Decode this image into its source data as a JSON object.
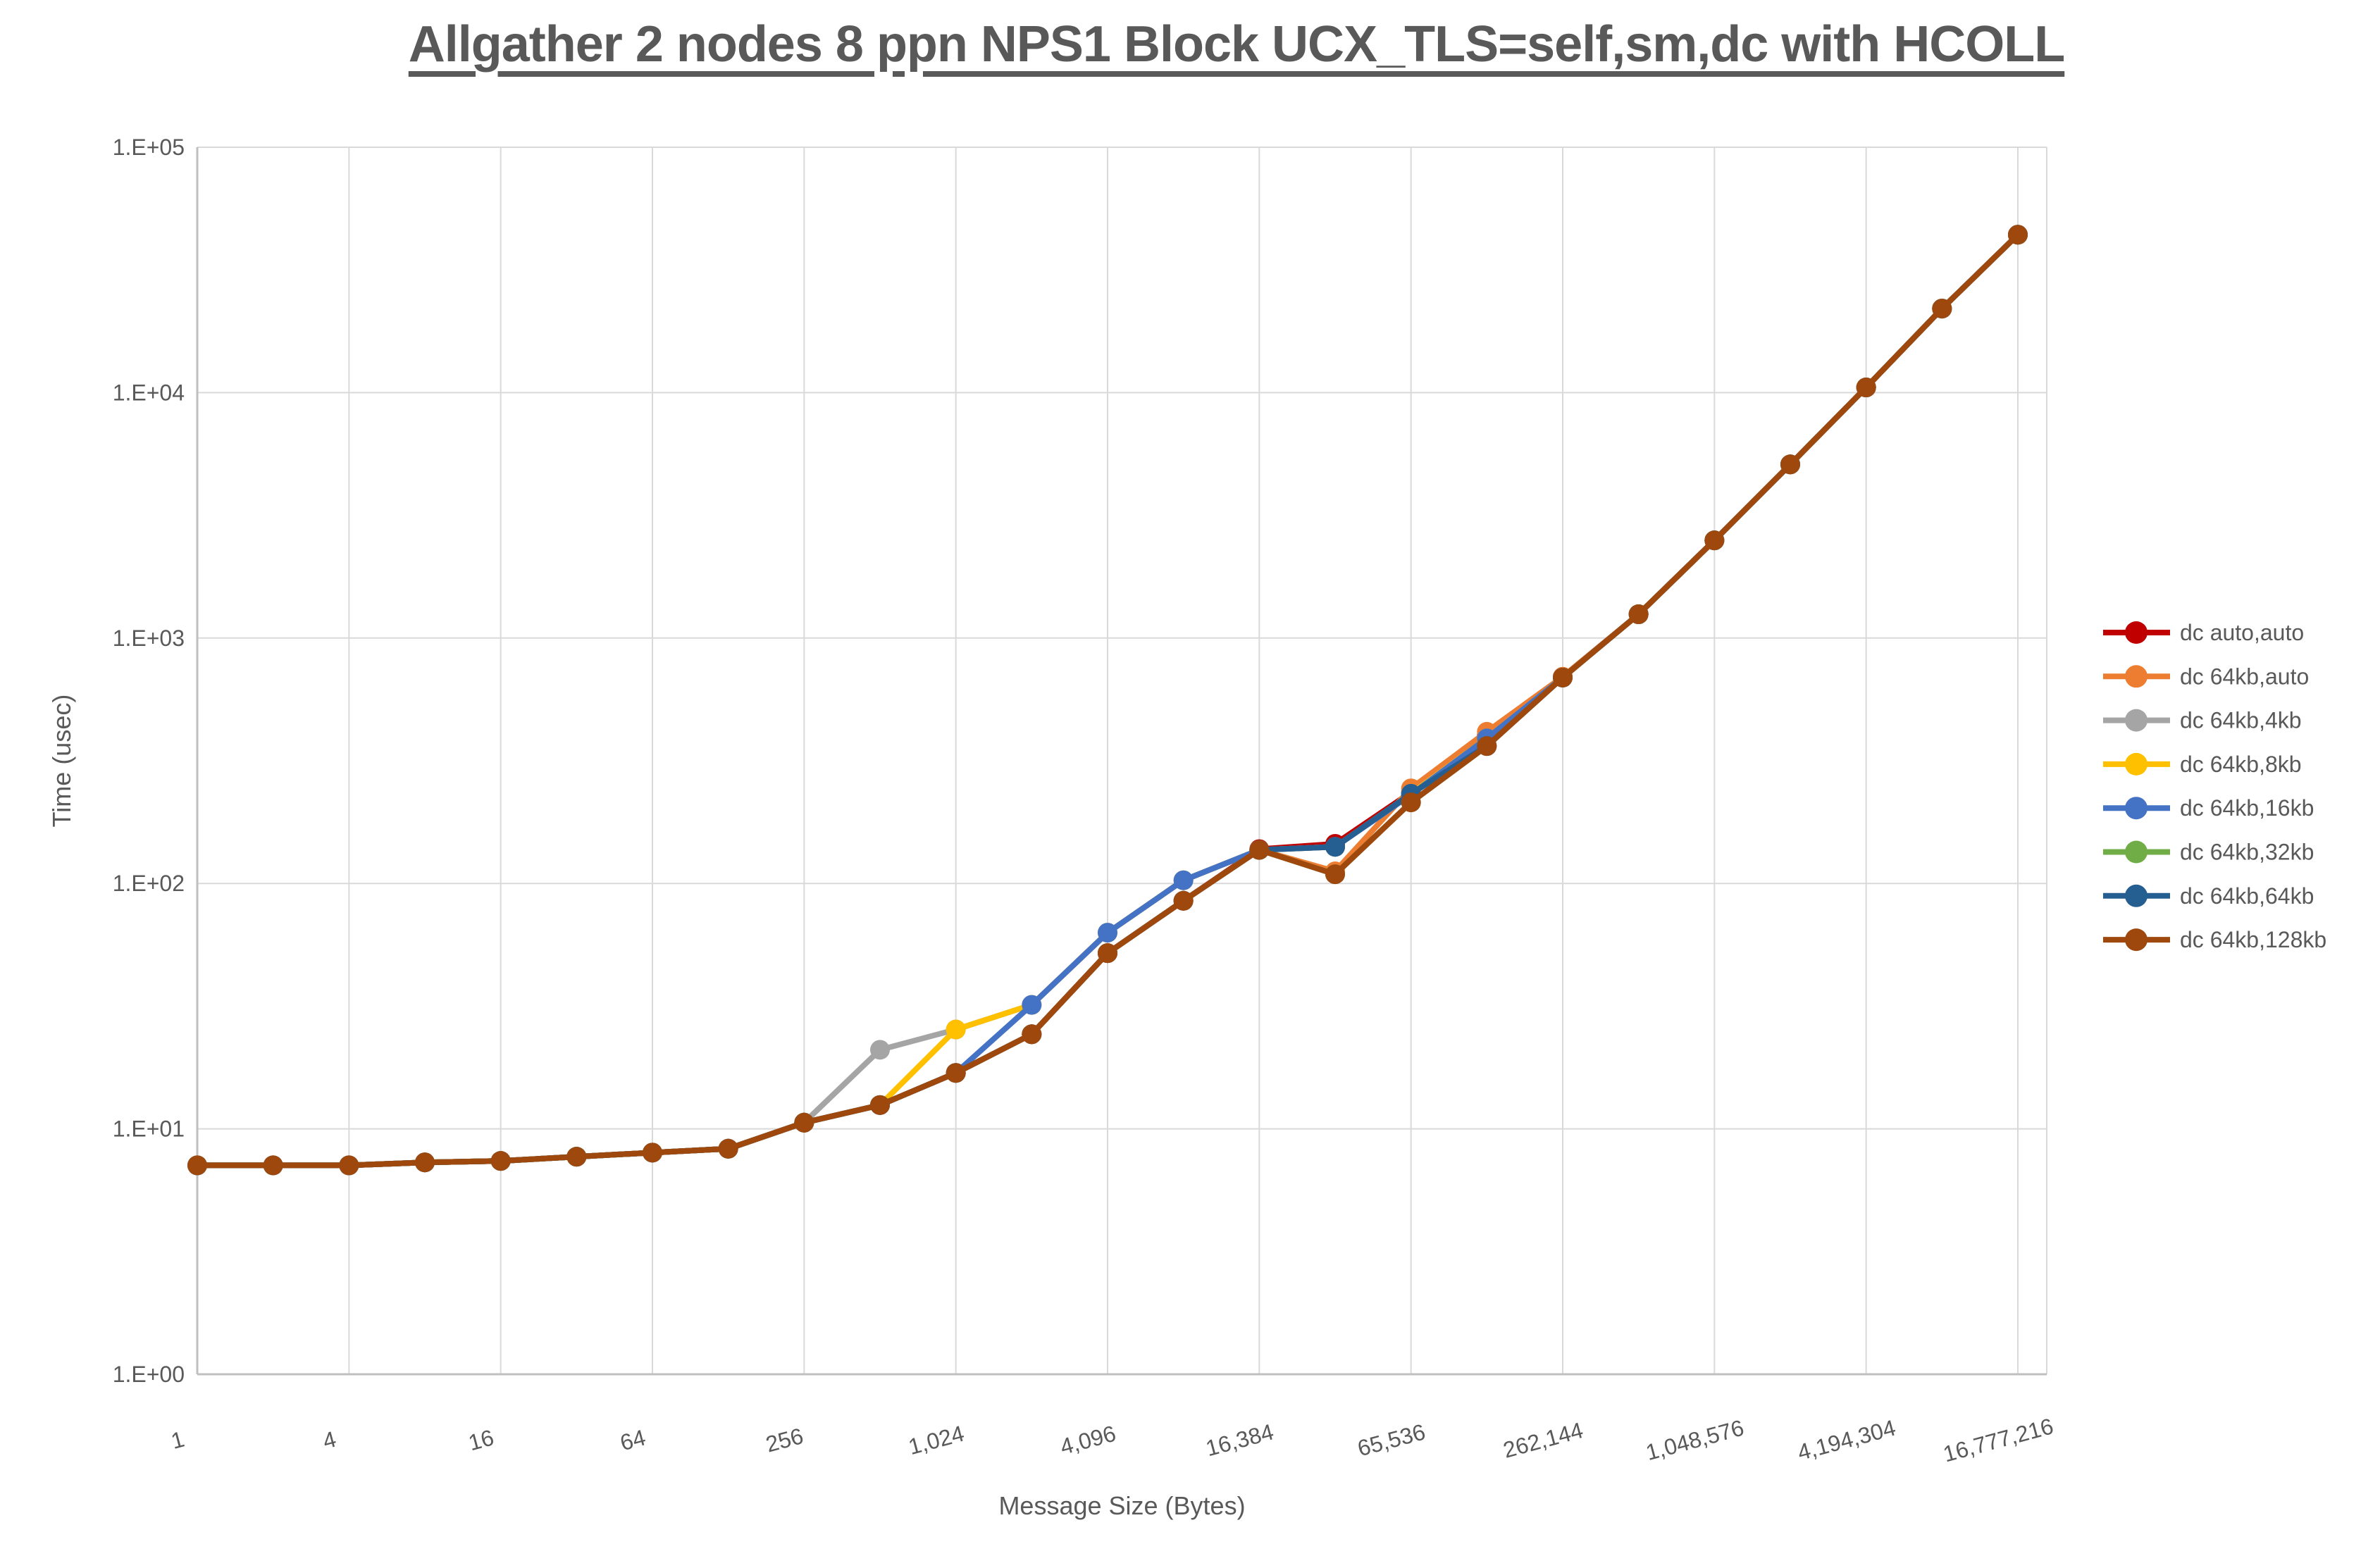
{
  "title": "Allgather 2 nodes 8 ppn NPS1 Block UCX_TLS=self,sm,dc with HCOLL",
  "colors": {
    "grid": "#D9D9D9",
    "axis": "#BFBFBF",
    "text": "#595959",
    "background": "#FFFFFF"
  },
  "chart_data": {
    "type": "line",
    "title": "Allgather 2 nodes 8 ppn NPS1 Block UCX_TLS=self,sm,dc with HCOLL",
    "xlabel": "Message Size (Bytes)",
    "ylabel": "Time (usec)",
    "x_scale": "log2",
    "y_scale": "log10",
    "ylim": [
      1,
      100000
    ],
    "grid": true,
    "legend_position": "right",
    "y_ticks": [
      1,
      10,
      100,
      1000,
      10000,
      100000
    ],
    "y_tick_labels": [
      "1.E+00",
      "1.E+01",
      "1.E+02",
      "1.E+03",
      "1.E+04",
      "1.E+05"
    ],
    "x_tick_values": [
      1,
      4,
      16,
      64,
      256,
      1024,
      4096,
      16384,
      65536,
      262144,
      1048576,
      4194304,
      16777216
    ],
    "x_tick_labels": [
      "1",
      "4",
      "16",
      "64",
      "256",
      "1,024",
      "4,096",
      "16,384",
      "65,536",
      "262,144",
      "1,048,576",
      "4,194,304",
      "16,777,216"
    ],
    "x": [
      1,
      2,
      4,
      8,
      16,
      32,
      64,
      128,
      256,
      512,
      1024,
      2048,
      4096,
      8192,
      16384,
      32768,
      65536,
      131072,
      262144,
      524288,
      1048576,
      2097152,
      4194304,
      8388608,
      16777216
    ],
    "series": [
      {
        "name": "dc auto,auto",
        "color": "#C00000",
        "values": [
          7.1,
          7.1,
          7.1,
          7.3,
          7.4,
          7.7,
          8.0,
          8.3,
          10.6,
          12.5,
          16.9,
          24.3,
          52,
          85,
          138,
          145,
          235,
          400,
          695,
          1250,
          2500,
          5100,
          10500,
          22000,
          44000
        ]
      },
      {
        "name": "dc 64kb,auto",
        "color": "#ED7D31",
        "values": [
          7.1,
          7.1,
          7.1,
          7.3,
          7.4,
          7.7,
          8.0,
          8.3,
          10.6,
          12.5,
          16.9,
          24.3,
          52,
          85,
          137,
          112,
          244,
          415,
          695,
          1250,
          2500,
          5100,
          10500,
          22000,
          44000
        ]
      },
      {
        "name": "dc 64kb,4kb",
        "color": "#A5A5A5",
        "values": [
          7.1,
          7.1,
          7.1,
          7.3,
          7.4,
          7.7,
          8.0,
          8.3,
          10.6,
          21,
          25.4,
          32,
          63,
          103,
          137,
          141,
          232,
          390,
          690,
          1250,
          2500,
          5100,
          10500,
          22000,
          44000
        ]
      },
      {
        "name": "dc 64kb,8kb",
        "color": "#FFC000",
        "values": [
          7.1,
          7.1,
          7.1,
          7.3,
          7.4,
          7.7,
          8.0,
          8.3,
          10.6,
          12.5,
          25.4,
          32,
          63,
          103,
          137,
          141,
          232,
          390,
          690,
          1250,
          2500,
          5100,
          10500,
          22000,
          44000
        ]
      },
      {
        "name": "dc 64kb,16kb",
        "color": "#4472C4",
        "values": [
          7.1,
          7.1,
          7.1,
          7.3,
          7.4,
          7.7,
          8.0,
          8.3,
          10.6,
          12.5,
          16.9,
          32,
          63,
          103,
          137,
          141,
          230,
          390,
          690,
          1250,
          2500,
          5100,
          10500,
          22000,
          44000
        ]
      },
      {
        "name": "dc 64kb,32kb",
        "color": "#70AD47",
        "values": [
          7.1,
          7.1,
          7.1,
          7.3,
          7.4,
          7.7,
          8.0,
          8.3,
          10.6,
          12.5,
          16.9,
          24.3,
          52,
          85,
          137,
          109,
          214,
          363,
          690,
          1250,
          2500,
          5100,
          10500,
          22000,
          44000
        ]
      },
      {
        "name": "dc 64kb,64kb",
        "color": "#255E91",
        "values": [
          7.1,
          7.1,
          7.1,
          7.3,
          7.4,
          7.7,
          8.0,
          8.3,
          10.6,
          12.5,
          16.9,
          24.3,
          52,
          85,
          137,
          141,
          232,
          363,
          690,
          1250,
          2500,
          5100,
          10500,
          22000,
          44000
        ]
      },
      {
        "name": "dc 64kb,128kb",
        "color": "#9E480E",
        "values": [
          7.1,
          7.1,
          7.1,
          7.3,
          7.4,
          7.7,
          8.0,
          8.3,
          10.6,
          12.5,
          16.9,
          24.3,
          52,
          85,
          137,
          109,
          214,
          363,
          690,
          1250,
          2500,
          5100,
          10500,
          22000,
          44000
        ]
      }
    ]
  }
}
